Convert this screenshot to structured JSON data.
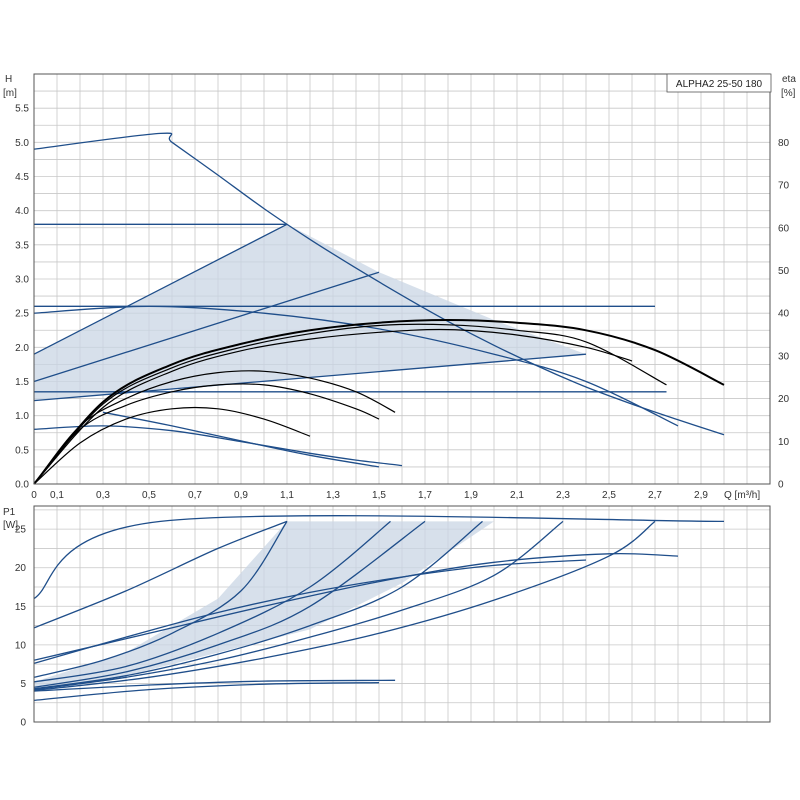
{
  "title": "ALPHA2 25-50 180",
  "colors": {
    "grid": "#c8c8c8",
    "curve": "#1f4e8a",
    "efficiency": "#000000",
    "shade": "#c9d6e4",
    "frame": "#555555"
  },
  "chart_data": [
    {
      "type": "line",
      "panel": "head",
      "title": "ALPHA2 25-50 180",
      "xlabel": "Q [m³/h]",
      "ylabel_left_line1": "H",
      "ylabel_left_line2": "[m]",
      "ylabel_right_line1": "eta",
      "ylabel_right_line2": "[%]",
      "xlim": [
        0,
        3.2
      ],
      "ylim": [
        0,
        6.0
      ],
      "y2lim": [
        0,
        96
      ],
      "x_ticks": [
        "0",
        "0,1",
        "0,3",
        "0,5",
        "0,7",
        "0,9",
        "1,1",
        "1,3",
        "1,5",
        "1,7",
        "1,9",
        "2,1",
        "2,3",
        "2,5",
        "2,7",
        "2,9"
      ],
      "x_tick_values": [
        0,
        0.1,
        0.3,
        0.5,
        0.7,
        0.9,
        1.1,
        1.3,
        1.5,
        1.7,
        1.9,
        2.1,
        2.3,
        2.5,
        2.7,
        2.9
      ],
      "y_ticks": [
        "0.0",
        "0.5",
        "1.0",
        "1.5",
        "2.0",
        "2.5",
        "3.0",
        "3.5",
        "4.0",
        "4.5",
        "5.0",
        "5.5"
      ],
      "y_tick_values": [
        0,
        0.5,
        1.0,
        1.5,
        2.0,
        2.5,
        3.0,
        3.5,
        4.0,
        4.5,
        5.0,
        5.5
      ],
      "y2_ticks": [
        "0",
        "10",
        "20",
        "30",
        "40",
        "50",
        "60",
        "70",
        "80"
      ],
      "y2_tick_values": [
        0,
        10,
        20,
        30,
        40,
        50,
        60,
        70,
        80
      ],
      "grid": true,
      "shaded_region": [
        [
          0,
          1.9
        ],
        [
          1.1,
          3.8
        ],
        [
          1.5,
          3.1
        ],
        [
          2.0,
          2.4
        ],
        [
          2.4,
          1.9
        ],
        [
          0,
          1.22
        ]
      ],
      "series": [
        {
          "style": "pump",
          "x": [
            0,
            0.55,
            0.6,
            0.8,
            1.0,
            1.2,
            1.4,
            1.6,
            1.8,
            2.0,
            2.2,
            2.4,
            2.6,
            2.8,
            3.0
          ],
          "y": [
            4.9,
            5.13,
            5.0,
            4.52,
            4.03,
            3.58,
            3.16,
            2.76,
            2.38,
            2.03,
            1.71,
            1.42,
            1.17,
            0.94,
            0.72
          ]
        },
        {
          "style": "pump",
          "x": [
            0,
            1.1
          ],
          "y": [
            3.8,
            3.8
          ]
        },
        {
          "style": "pump",
          "x": [
            0,
            2.7
          ],
          "y": [
            2.6,
            2.6
          ]
        },
        {
          "style": "pump",
          "x": [
            0,
            2.75
          ],
          "y": [
            1.35,
            1.35
          ]
        },
        {
          "style": "pump",
          "x": [
            0,
            1.1
          ],
          "y": [
            1.9,
            3.8
          ]
        },
        {
          "style": "pump",
          "x": [
            0,
            1.5
          ],
          "y": [
            1.5,
            3.1
          ]
        },
        {
          "style": "pump",
          "x": [
            0,
            2.4
          ],
          "y": [
            1.22,
            1.9
          ]
        },
        {
          "style": "pump",
          "x": [
            0,
            0.5,
            1.0,
            1.5,
            2.0,
            2.4,
            2.8
          ],
          "y": [
            2.5,
            2.6,
            2.5,
            2.27,
            1.9,
            1.5,
            0.85
          ]
        },
        {
          "style": "pump",
          "x": [
            0,
            0.3,
            0.6,
            0.9,
            1.2,
            1.4,
            1.6
          ],
          "y": [
            0.8,
            0.85,
            0.78,
            0.62,
            0.45,
            0.35,
            0.27
          ]
        },
        {
          "style": "pump",
          "x": [
            0.3,
            0.6,
            0.9,
            1.2,
            1.5
          ],
          "y": [
            1.05,
            0.85,
            0.63,
            0.42,
            0.25
          ]
        },
        {
          "style": "efficiency",
          "x": [
            0,
            0.3,
            0.6,
            0.9,
            1.2,
            1.5,
            1.8,
            2.1,
            2.4,
            2.7,
            3.0
          ],
          "y": [
            0,
            1.2,
            1.75,
            2.05,
            2.25,
            2.36,
            2.4,
            2.36,
            2.25,
            1.96,
            1.45
          ]
        },
        {
          "style": "efficiency",
          "x": [
            0,
            0.3,
            0.6,
            0.9,
            1.2,
            1.5,
            1.8,
            2.1,
            2.4,
            2.75
          ],
          "y": [
            0,
            1.17,
            1.7,
            2.0,
            2.2,
            2.32,
            2.33,
            2.25,
            2.08,
            1.45
          ]
        },
        {
          "style": "efficiency",
          "x": [
            0,
            0.3,
            0.6,
            0.9,
            1.2,
            1.5,
            1.8,
            2.1,
            2.4,
            2.6
          ],
          "y": [
            0,
            1.12,
            1.65,
            1.95,
            2.12,
            2.22,
            2.26,
            2.18,
            2.0,
            1.8
          ]
        },
        {
          "style": "efficiency",
          "x": [
            0,
            0.2,
            0.4,
            0.6,
            0.8,
            1.0,
            1.2,
            1.4,
            1.57
          ],
          "y": [
            0,
            0.85,
            1.25,
            1.5,
            1.63,
            1.65,
            1.55,
            1.35,
            1.05
          ]
        },
        {
          "style": "efficiency",
          "x": [
            0,
            0.2,
            0.4,
            0.6,
            0.8,
            1.0,
            1.2,
            1.4,
            1.5
          ],
          "y": [
            0,
            0.8,
            1.15,
            1.35,
            1.45,
            1.45,
            1.32,
            1.1,
            0.95
          ]
        },
        {
          "style": "efficiency",
          "x": [
            0,
            0.2,
            0.4,
            0.6,
            0.8,
            1.0,
            1.2
          ],
          "y": [
            0,
            0.6,
            0.95,
            1.1,
            1.1,
            0.95,
            0.7
          ]
        }
      ]
    },
    {
      "type": "line",
      "panel": "power",
      "ylabel_line1": "P1",
      "ylabel_line2": "[W]",
      "xlim": [
        0,
        3.2
      ],
      "ylim": [
        0,
        28
      ],
      "y_ticks": [
        "0",
        "5",
        "10",
        "15",
        "20",
        "25"
      ],
      "y_tick_values": [
        0,
        5,
        10,
        15,
        20,
        25
      ],
      "grid": true,
      "shaded_region": [
        [
          0,
          5.2
        ],
        [
          0.4,
          9
        ],
        [
          0.8,
          16
        ],
        [
          1.1,
          26
        ],
        [
          2.0,
          26
        ],
        [
          1.6,
          18
        ],
        [
          1.2,
          12
        ],
        [
          0.8,
          9
        ],
        [
          0.4,
          6
        ],
        [
          0,
          4.2
        ]
      ],
      "series": [
        {
          "x": [
            0,
            0.55,
            3.0
          ],
          "y": [
            16,
            26,
            26
          ]
        },
        {
          "x": [
            0,
            0.4,
            0.8,
            1.1
          ],
          "y": [
            12.2,
            17,
            22.5,
            26
          ]
        },
        {
          "x": [
            0,
            0.3,
            0.6,
            0.9,
            1.1
          ],
          "y": [
            5.8,
            8,
            11.5,
            17,
            26
          ]
        },
        {
          "x": [
            0,
            0.4,
            0.8,
            1.2,
            1.55
          ],
          "y": [
            5.2,
            7.2,
            11.5,
            17.5,
            26
          ]
        },
        {
          "x": [
            0,
            0.4,
            0.8,
            1.2,
            1.7
          ],
          "y": [
            4.5,
            6.5,
            10,
            15,
            26
          ]
        },
        {
          "x": [
            0,
            0.4,
            0.8,
            1.2,
            1.6,
            1.95
          ],
          "y": [
            4.3,
            6,
            8.8,
            12.5,
            17.5,
            26
          ]
        },
        {
          "x": [
            0,
            0.4,
            0.8,
            1.2,
            1.6,
            2.0,
            2.3
          ],
          "y": [
            4.2,
            5.8,
            8,
            11,
            14.5,
            19,
            26
          ]
        },
        {
          "x": [
            0,
            0.5,
            1.0,
            1.5,
            2.0,
            2.5,
            2.7
          ],
          "y": [
            4.1,
            5.8,
            8.3,
            11.5,
            15.8,
            21.5,
            26
          ]
        },
        {
          "x": [
            0,
            0.5,
            1.0,
            1.5,
            2.0,
            2.5,
            2.8
          ],
          "y": [
            8,
            11.5,
            15,
            18.2,
            20.7,
            21.8,
            21.5
          ]
        },
        {
          "x": [
            0,
            0.4,
            0.8,
            1.2,
            1.6,
            2.0,
            2.4
          ],
          "y": [
            7.6,
            11,
            14.2,
            16.8,
            18.8,
            20.3,
            21
          ]
        },
        {
          "x": [
            0,
            0.5,
            1.0,
            1.5
          ],
          "y": [
            2.8,
            4.2,
            4.9,
            5.1
          ]
        },
        {
          "x": [
            0,
            0.5,
            1.0,
            1.57
          ],
          "y": [
            4,
            4.8,
            5.3,
            5.4
          ]
        }
      ]
    }
  ]
}
